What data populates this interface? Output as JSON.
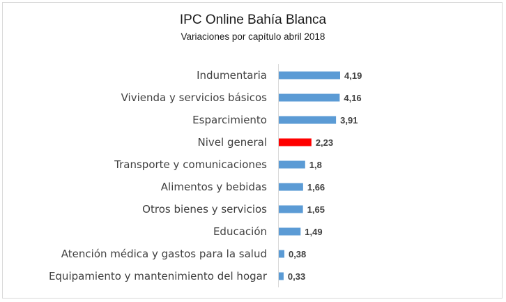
{
  "chart_data": {
    "type": "bar",
    "orientation": "horizontal",
    "title": "IPC Online Bahía Blanca",
    "subtitle": "Variaciones por capítulo abril 2018",
    "categories": [
      "Indumentaria",
      "Vivienda y servicios básicos",
      "Esparcimiento",
      "Nivel general",
      "Transporte y comunicaciones",
      "Alimentos y bebidas",
      "Otros bienes y servicios",
      "Educación",
      "Atención médica y gastos para la salud",
      "Equipamiento y mantenimiento del hogar"
    ],
    "values": [
      4.19,
      4.16,
      3.91,
      2.23,
      1.8,
      1.66,
      1.65,
      1.49,
      0.38,
      0.33
    ],
    "value_labels": [
      "4,19",
      "4,16",
      "3,91",
      "2,23",
      "1,8",
      "1,66",
      "1,65",
      "1,49",
      "0,38",
      "0,33"
    ],
    "bar_color": "#5b9bd5",
    "highlight_color": "#ff0000",
    "highlight_category": "Nivel general",
    "xlim": [
      0,
      4.19
    ],
    "grid": false,
    "legend": "none"
  }
}
